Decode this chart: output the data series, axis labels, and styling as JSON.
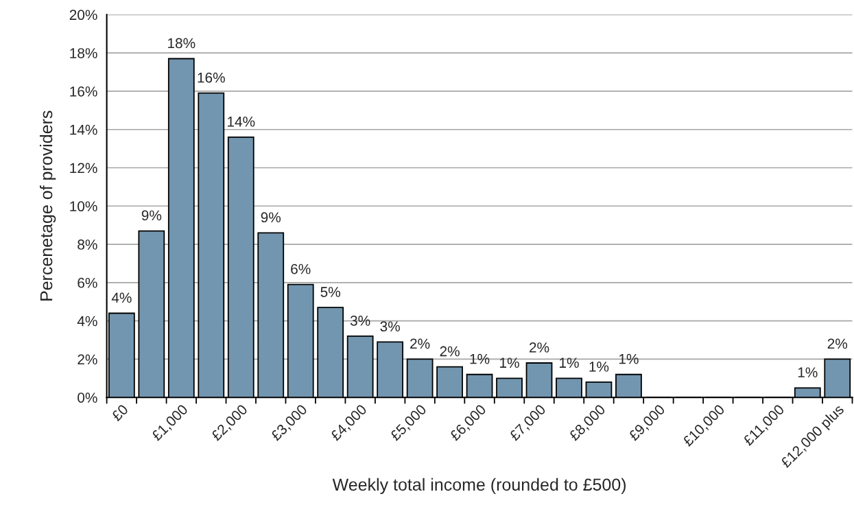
{
  "chart_data": {
    "type": "bar",
    "xlabel": "Weekly total income (rounded to £500)",
    "ylabel": "Percenetage of providers",
    "categories": [
      "£0",
      null,
      "£1,000",
      null,
      "£2,000",
      null,
      "£3,000",
      null,
      "£4,000",
      null,
      "£5,000",
      null,
      "£6,000",
      null,
      "£7,000",
      null,
      "£8,000",
      null,
      "£9,000",
      null,
      "£10,000",
      null,
      "£11,000",
      null,
      "£12,000 plus"
    ],
    "values": [
      4.4,
      8.7,
      17.7,
      15.9,
      13.6,
      8.6,
      5.9,
      4.7,
      3.2,
      2.9,
      2.0,
      1.6,
      1.2,
      1.0,
      1.8,
      1.0,
      0.8,
      1.2,
      0,
      0,
      0,
      0,
      0,
      0.5,
      2.0
    ],
    "value_labels": [
      "4%",
      "9%",
      "18%",
      "16%",
      "14%",
      "9%",
      "6%",
      "5%",
      "3%",
      "3%",
      "2%",
      "2%",
      "1%",
      "1%",
      "2%",
      "1%",
      "1%",
      "1%",
      null,
      null,
      null,
      null,
      null,
      "1%",
      "2%"
    ],
    "color": "#7396b0",
    "ylim": [
      0,
      20
    ],
    "yticks": [
      {
        "value": 0,
        "label": "0%"
      },
      {
        "value": 2,
        "label": "2%"
      },
      {
        "value": 4,
        "label": "4%"
      },
      {
        "value": 6,
        "label": "6%"
      },
      {
        "value": 8,
        "label": "8%"
      },
      {
        "value": 10,
        "label": "10%"
      },
      {
        "value": 12,
        "label": "12%"
      },
      {
        "value": 14,
        "label": "14%"
      },
      {
        "value": 16,
        "label": "16%"
      },
      {
        "value": 18,
        "label": "18%"
      },
      {
        "value": 20,
        "label": "20%"
      }
    ],
    "grid": "y"
  }
}
